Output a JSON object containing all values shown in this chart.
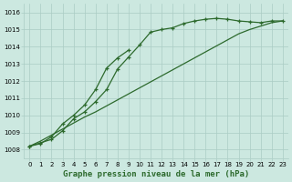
{
  "title": "Graphe pression niveau de la mer (hPa)",
  "x_values": [
    0,
    1,
    2,
    3,
    4,
    5,
    6,
    7,
    8,
    9,
    10,
    11,
    12,
    13,
    14,
    15,
    16,
    17,
    18,
    19,
    20,
    21,
    22,
    23
  ],
  "series1": [
    1008.2,
    1008.4,
    1008.6,
    1009.1,
    1009.8,
    1010.2,
    1010.8,
    1011.5,
    1012.7,
    1013.4,
    1014.1,
    1014.85,
    1015.0,
    1015.1,
    1015.35,
    1015.5,
    1015.6,
    1015.65,
    1015.6,
    1015.5,
    1015.45,
    1015.4,
    1015.5,
    1015.5
  ],
  "series2": [
    1008.2,
    1008.35,
    1008.75,
    1009.5,
    1010.0,
    1010.6,
    1011.5,
    1012.75,
    1013.35,
    1013.8,
    null,
    null,
    null,
    null,
    null,
    null,
    null,
    null,
    null,
    null,
    null,
    null,
    null,
    null
  ],
  "series3": [
    1008.2,
    1008.5,
    1008.85,
    1009.2,
    1009.55,
    1009.9,
    1010.2,
    1010.55,
    1010.9,
    1011.25,
    1011.6,
    1011.95,
    1012.3,
    1012.65,
    1013.0,
    1013.35,
    1013.7,
    1014.05,
    1014.4,
    1014.75,
    1015.0,
    1015.2,
    1015.4,
    1015.5
  ],
  "line_color": "#2d6a2d",
  "background_color": "#cce8e0",
  "grid_color": "#aaccc4",
  "ylim": [
    1007.5,
    1016.5
  ],
  "xlim": [
    -0.5,
    23.5
  ],
  "yticks": [
    1008,
    1009,
    1010,
    1011,
    1012,
    1013,
    1014,
    1015,
    1016
  ],
  "xticks": [
    0,
    1,
    2,
    3,
    4,
    5,
    6,
    7,
    8,
    9,
    10,
    11,
    12,
    13,
    14,
    15,
    16,
    17,
    18,
    19,
    20,
    21,
    22,
    23
  ],
  "title_fontsize": 6.5,
  "tick_fontsize": 5.0
}
